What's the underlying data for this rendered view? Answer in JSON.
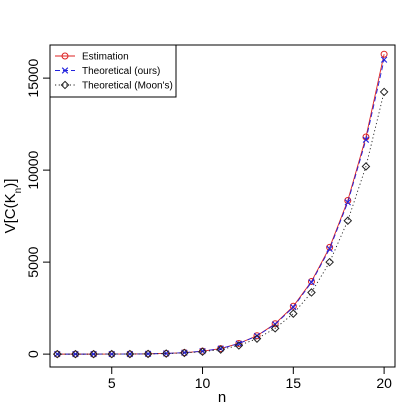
{
  "chart_data": {
    "type": "line",
    "title": "",
    "xlabel": "n",
    "ylabel_main": "V[C(K",
    "ylabel_sub": "n",
    "ylabel_end": ")]",
    "xlim": [
      1.6,
      20.6
    ],
    "ylim": [
      -700,
      16800
    ],
    "xticks": [
      5,
      10,
      15,
      20
    ],
    "yticks": [
      0,
      5000,
      10000,
      15000
    ],
    "grid": false,
    "legend_position": "top-left",
    "x": [
      2,
      3,
      4,
      5,
      6,
      7,
      8,
      9,
      10,
      11,
      12,
      13,
      14,
      15,
      16,
      17,
      18,
      19,
      20
    ],
    "series": [
      {
        "name": "Estimation",
        "color": "#dd2222",
        "marker": "circle",
        "line": "solid",
        "values": [
          0,
          0,
          0,
          2,
          6,
          15,
          35,
          80,
          160,
          300,
          580,
          1000,
          1650,
          2600,
          3950,
          5800,
          8350,
          11800,
          16300
        ]
      },
      {
        "name": "Theoretical (ours)",
        "color": "#2222dd",
        "marker": "cross",
        "line": "dashed",
        "values": [
          0,
          0,
          0,
          2,
          6,
          15,
          35,
          80,
          160,
          300,
          570,
          990,
          1620,
          2550,
          3900,
          5720,
          8250,
          11650,
          16000
        ]
      },
      {
        "name": "Theoretical (Moon's)",
        "color": "#222222",
        "marker": "diamond",
        "line": "dotted",
        "values": [
          0,
          0,
          0,
          2,
          5,
          13,
          30,
          65,
          130,
          250,
          470,
          840,
          1400,
          2200,
          3350,
          5000,
          7250,
          10200,
          14250
        ]
      }
    ]
  }
}
